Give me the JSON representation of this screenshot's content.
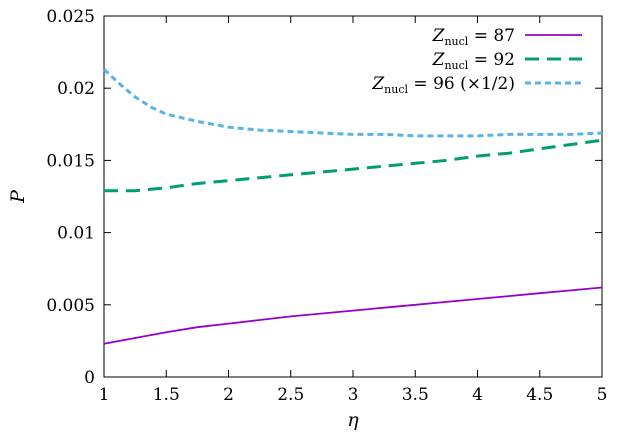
{
  "chart_data": {
    "type": "line",
    "xlabel": "η",
    "ylabel": "P",
    "xlim": [
      1,
      5
    ],
    "ylim": [
      0,
      0.025
    ],
    "xticks": [
      "1",
      "1.5",
      "2",
      "2.5",
      "3",
      "3.5",
      "4",
      "4.5",
      "5"
    ],
    "yticks": [
      "0",
      "0.005",
      "0.01",
      "0.015",
      "0.02",
      "0.025"
    ],
    "grid": false,
    "legend_position": "top-right",
    "series": [
      {
        "name": "Z_nucl = 87",
        "legend_var": "Z",
        "legend_sub": "nucl",
        "legend_rest": " = 87",
        "color": "#9400d3",
        "dash": "solid",
        "x": [
          1.0,
          1.25,
          1.5,
          1.75,
          2.0,
          2.25,
          2.5,
          2.75,
          3.0,
          3.25,
          3.5,
          3.75,
          4.0,
          4.25,
          4.5,
          4.75,
          5.0
        ],
        "y": [
          0.0023,
          0.0027,
          0.0031,
          0.00345,
          0.0037,
          0.00395,
          0.0042,
          0.0044,
          0.0046,
          0.0048,
          0.005,
          0.0052,
          0.0054,
          0.0056,
          0.0058,
          0.006,
          0.0062
        ]
      },
      {
        "name": "Z_nucl = 92",
        "legend_var": "Z",
        "legend_sub": "nucl",
        "legend_rest": " = 92",
        "color": "#009e73",
        "dash": "dashed",
        "x": [
          1.0,
          1.25,
          1.5,
          1.75,
          2.0,
          2.25,
          2.5,
          2.75,
          3.0,
          3.25,
          3.5,
          3.75,
          4.0,
          4.25,
          4.5,
          4.75,
          5.0
        ],
        "y": [
          0.0129,
          0.0129,
          0.0131,
          0.0134,
          0.0136,
          0.0138,
          0.014,
          0.0142,
          0.0144,
          0.0146,
          0.0148,
          0.015,
          0.0153,
          0.0155,
          0.0158,
          0.0161,
          0.0164
        ]
      },
      {
        "name": "Z_nucl = 96 (×1/2)",
        "legend_var": "Z",
        "legend_sub": "nucl",
        "legend_rest": " = 96 (×1/2)",
        "color": "#56b4e9",
        "dash": "dotted",
        "x": [
          1.0,
          1.125,
          1.25,
          1.375,
          1.5,
          1.75,
          2.0,
          2.25,
          2.5,
          2.75,
          3.0,
          3.25,
          3.5,
          3.75,
          4.0,
          4.25,
          4.5,
          4.75,
          5.0
        ],
        "y": [
          0.0213,
          0.0203,
          0.0194,
          0.0187,
          0.0182,
          0.0177,
          0.0173,
          0.0171,
          0.017,
          0.0169,
          0.0168,
          0.0168,
          0.0167,
          0.0167,
          0.0167,
          0.0168,
          0.0168,
          0.0168,
          0.0169
        ]
      }
    ]
  }
}
